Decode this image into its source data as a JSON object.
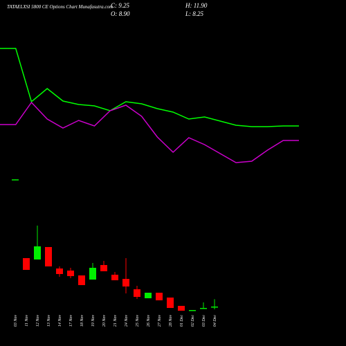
{
  "chart_data": [
    {
      "type": "line",
      "categories": [
        null,
        null,
        null,
        null,
        null,
        null,
        null,
        null,
        null,
        null,
        null,
        null,
        null,
        null,
        null,
        null,
        null,
        null,
        null,
        null
      ],
      "ylim": [
        0,
        200
      ],
      "series": [
        {
          "color": "#00ff00",
          "values": [
            180,
            180,
            103,
            122,
            104,
            99,
            97,
            90,
            103,
            100,
            93,
            88,
            78,
            81,
            75,
            69,
            67,
            67,
            68,
            68
          ]
        },
        {
          "color": "#cc00cc",
          "values": [
            70,
            70,
            102,
            78,
            65,
            76,
            68,
            90,
            98,
            82,
            52,
            30,
            51,
            41,
            28,
            15,
            17,
            33,
            47,
            47
          ]
        }
      ]
    },
    {
      "type": "candlestick",
      "title": "TATAELXSI 5800  CE Options  Chart Munafasutra.com",
      "annotations": [
        "C: 9.25",
        "H: 11.90",
        "O: 8.90",
        "L: 8.25"
      ],
      "categories": [
        "03 Nov",
        "11 Nov",
        "12 Nov",
        "13 Nov",
        "14 Nov",
        "17 Nov",
        "18 Nov",
        "19 Nov",
        "20 Nov",
        "21 Nov",
        "24 Nov",
        "25 Nov",
        "26 Nov",
        "27 Nov",
        "28 Nov",
        "01 Dec",
        "02 Dec",
        "03 Dec",
        "04 Dec"
      ],
      "open": [
        55,
        26.75,
        26.25,
        30.75,
        23,
        22.25,
        20.5,
        19,
        24.25,
        20.75,
        19.25,
        15.5,
        12.25,
        14.25,
        12.5,
        9.5,
        7.75,
        8.5,
        8.9
      ],
      "high": [
        55.2,
        26.75,
        38.5,
        30.75,
        23.75,
        23.25,
        20.5,
        25,
        25.75,
        21.75,
        26.75,
        16.75,
        14.25,
        14.25,
        12.5,
        9.5,
        8,
        10.75,
        11.9
      ],
      "low": [
        55,
        22.5,
        26.25,
        23.75,
        20,
        19.5,
        17,
        19,
        22,
        18.75,
        14,
        12,
        12.25,
        11.5,
        8.75,
        7.75,
        7.75,
        8.5,
        8.25
      ],
      "close": [
        55.2,
        22.5,
        31,
        23.75,
        21,
        20.25,
        17,
        23.25,
        22,
        18.75,
        16.5,
        12.75,
        14.25,
        11.5,
        8.75,
        7.75,
        8,
        8.75,
        9.25
      ],
      "up_color": "#00ee00",
      "down_color": "#ff0000",
      "ylim": [
        5,
        57.5
      ]
    }
  ]
}
